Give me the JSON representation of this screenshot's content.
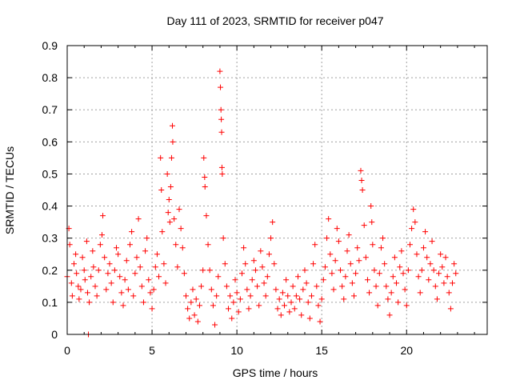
{
  "chart_data": {
    "type": "scatter",
    "title": "Day 111 of 2023, SRMTID for receiver p047",
    "xlabel": "GPS time / hours",
    "ylabel": "SRMTID / TECUs",
    "xlim": [
      0,
      24.75
    ],
    "ylim": [
      0,
      0.9
    ],
    "xticks": [
      0,
      5,
      10,
      15,
      20
    ],
    "yticks": [
      0,
      0.1,
      0.2,
      0.3,
      0.4,
      0.5,
      0.6,
      0.7,
      0.8,
      0.9
    ],
    "xtick_labels": [
      "0",
      "5",
      "10",
      "15",
      "20"
    ],
    "ytick_labels": [
      "0",
      "0.1",
      "0.2",
      "0.3",
      "0.4",
      "0.5",
      "0.6",
      "0.7",
      "0.8",
      "0.9"
    ],
    "grid": true,
    "marker": "+",
    "colors": {
      "points": "#ff0000",
      "grid": "#a0a0a0",
      "axis": "#000000"
    },
    "series": [
      {
        "name": "SRMTID",
        "points": [
          [
            0.0,
            0.18
          ],
          [
            0.1,
            0.33
          ],
          [
            0.15,
            0.28
          ],
          [
            0.25,
            0.16
          ],
          [
            0.3,
            0.12
          ],
          [
            0.4,
            0.22
          ],
          [
            0.5,
            0.25
          ],
          [
            0.55,
            0.19
          ],
          [
            0.65,
            0.15
          ],
          [
            0.7,
            0.11
          ],
          [
            0.8,
            0.14
          ],
          [
            0.9,
            0.24
          ],
          [
            1.0,
            0.2
          ],
          [
            1.05,
            0.17
          ],
          [
            1.15,
            0.29
          ],
          [
            1.2,
            0.13
          ],
          [
            1.25,
            0.0
          ],
          [
            1.3,
            0.1
          ],
          [
            1.4,
            0.18
          ],
          [
            1.5,
            0.26
          ],
          [
            1.55,
            0.21
          ],
          [
            1.65,
            0.15
          ],
          [
            1.75,
            0.12
          ],
          [
            1.85,
            0.2
          ],
          [
            1.95,
            0.28
          ],
          [
            2.05,
            0.31
          ],
          [
            2.1,
            0.37
          ],
          [
            2.2,
            0.24
          ],
          [
            2.3,
            0.14
          ],
          [
            2.4,
            0.19
          ],
          [
            2.5,
            0.22
          ],
          [
            2.6,
            0.16
          ],
          [
            2.7,
            0.1
          ],
          [
            2.8,
            0.2
          ],
          [
            2.9,
            0.27
          ],
          [
            3.0,
            0.25
          ],
          [
            3.1,
            0.18
          ],
          [
            3.2,
            0.13
          ],
          [
            3.3,
            0.09
          ],
          [
            3.4,
            0.17
          ],
          [
            3.5,
            0.23
          ],
          [
            3.6,
            0.14
          ],
          [
            3.7,
            0.28
          ],
          [
            3.8,
            0.32
          ],
          [
            3.9,
            0.12
          ],
          [
            4.0,
            0.19
          ],
          [
            4.1,
            0.24
          ],
          [
            4.2,
            0.36
          ],
          [
            4.3,
            0.21
          ],
          [
            4.4,
            0.15
          ],
          [
            4.5,
            0.1
          ],
          [
            4.6,
            0.26
          ],
          [
            4.7,
            0.3
          ],
          [
            4.8,
            0.17
          ],
          [
            4.9,
            0.13
          ],
          [
            5.0,
            0.08
          ],
          [
            5.1,
            0.14
          ],
          [
            5.2,
            0.21
          ],
          [
            5.3,
            0.25
          ],
          [
            5.4,
            0.18
          ],
          [
            5.5,
            0.55
          ],
          [
            5.55,
            0.45
          ],
          [
            5.6,
            0.32
          ],
          [
            5.7,
            0.22
          ],
          [
            5.8,
            0.16
          ],
          [
            5.9,
            0.5
          ],
          [
            5.95,
            0.38
          ],
          [
            6.0,
            0.42
          ],
          [
            6.05,
            0.35
          ],
          [
            6.1,
            0.46
          ],
          [
            6.15,
            0.55
          ],
          [
            6.2,
            0.65
          ],
          [
            6.22,
            0.6
          ],
          [
            6.3,
            0.36
          ],
          [
            6.4,
            0.28
          ],
          [
            6.5,
            0.21
          ],
          [
            6.6,
            0.39
          ],
          [
            6.7,
            0.33
          ],
          [
            6.8,
            0.27
          ],
          [
            6.9,
            0.19
          ],
          [
            7.0,
            0.12
          ],
          [
            7.1,
            0.08
          ],
          [
            7.2,
            0.05
          ],
          [
            7.3,
            0.1
          ],
          [
            7.4,
            0.14
          ],
          [
            7.5,
            0.06
          ],
          [
            7.6,
            0.11
          ],
          [
            7.7,
            0.04
          ],
          [
            7.8,
            0.09
          ],
          [
            7.9,
            0.15
          ],
          [
            8.0,
            0.2
          ],
          [
            8.05,
            0.55
          ],
          [
            8.1,
            0.49
          ],
          [
            8.12,
            0.46
          ],
          [
            8.2,
            0.37
          ],
          [
            8.3,
            0.28
          ],
          [
            8.4,
            0.2
          ],
          [
            8.5,
            0.14
          ],
          [
            8.6,
            0.09
          ],
          [
            8.7,
            0.03
          ],
          [
            8.8,
            0.12
          ],
          [
            8.9,
            0.18
          ],
          [
            9.0,
            0.82
          ],
          [
            9.03,
            0.77
          ],
          [
            9.06,
            0.7
          ],
          [
            9.08,
            0.67
          ],
          [
            9.1,
            0.63
          ],
          [
            9.12,
            0.52
          ],
          [
            9.14,
            0.5
          ],
          [
            9.2,
            0.3
          ],
          [
            9.3,
            0.22
          ],
          [
            9.4,
            0.15
          ],
          [
            9.5,
            0.08
          ],
          [
            9.6,
            0.12
          ],
          [
            9.7,
            0.05
          ],
          [
            9.8,
            0.1
          ],
          [
            9.9,
            0.17
          ],
          [
            10.0,
            0.13
          ],
          [
            10.1,
            0.07
          ],
          [
            10.2,
            0.11
          ],
          [
            10.3,
            0.19
          ],
          [
            10.4,
            0.27
          ],
          [
            10.5,
            0.22
          ],
          [
            10.6,
            0.14
          ],
          [
            10.7,
            0.08
          ],
          [
            10.8,
            0.12
          ],
          [
            10.9,
            0.17
          ],
          [
            11.0,
            0.23
          ],
          [
            11.1,
            0.2
          ],
          [
            11.2,
            0.15
          ],
          [
            11.3,
            0.09
          ],
          [
            11.4,
            0.26
          ],
          [
            11.5,
            0.21
          ],
          [
            11.6,
            0.16
          ],
          [
            11.7,
            0.12
          ],
          [
            11.8,
            0.18
          ],
          [
            11.9,
            0.25
          ],
          [
            12.0,
            0.3
          ],
          [
            12.1,
            0.35
          ],
          [
            12.2,
            0.22
          ],
          [
            12.3,
            0.14
          ],
          [
            12.4,
            0.08
          ],
          [
            12.5,
            0.11
          ],
          [
            12.6,
            0.06
          ],
          [
            12.7,
            0.13
          ],
          [
            12.8,
            0.09
          ],
          [
            12.9,
            0.17
          ],
          [
            13.0,
            0.12
          ],
          [
            13.1,
            0.07
          ],
          [
            13.2,
            0.1
          ],
          [
            13.3,
            0.15
          ],
          [
            13.4,
            0.08
          ],
          [
            13.5,
            0.12
          ],
          [
            13.6,
            0.18
          ],
          [
            13.7,
            0.11
          ],
          [
            13.8,
            0.06
          ],
          [
            13.9,
            0.14
          ],
          [
            14.0,
            0.2
          ],
          [
            14.1,
            0.16
          ],
          [
            14.2,
            0.1
          ],
          [
            14.3,
            0.05
          ],
          [
            14.4,
            0.12
          ],
          [
            14.5,
            0.22
          ],
          [
            14.6,
            0.28
          ],
          [
            14.7,
            0.15
          ],
          [
            14.8,
            0.09
          ],
          [
            14.9,
            0.04
          ],
          [
            15.0,
            0.11
          ],
          [
            15.1,
            0.17
          ],
          [
            15.2,
            0.21
          ],
          [
            15.3,
            0.3
          ],
          [
            15.4,
            0.36
          ],
          [
            15.5,
            0.25
          ],
          [
            15.6,
            0.19
          ],
          [
            15.7,
            0.14
          ],
          [
            15.8,
            0.23
          ],
          [
            15.9,
            0.33
          ],
          [
            16.0,
            0.29
          ],
          [
            16.1,
            0.2
          ],
          [
            16.2,
            0.15
          ],
          [
            16.3,
            0.11
          ],
          [
            16.4,
            0.18
          ],
          [
            16.5,
            0.26
          ],
          [
            16.6,
            0.31
          ],
          [
            16.7,
            0.22
          ],
          [
            16.8,
            0.16
          ],
          [
            16.9,
            0.12
          ],
          [
            17.0,
            0.19
          ],
          [
            17.1,
            0.27
          ],
          [
            17.2,
            0.23
          ],
          [
            17.3,
            0.51
          ],
          [
            17.35,
            0.48
          ],
          [
            17.4,
            0.45
          ],
          [
            17.5,
            0.34
          ],
          [
            17.6,
            0.24
          ],
          [
            17.7,
            0.17
          ],
          [
            17.8,
            0.13
          ],
          [
            17.9,
            0.4
          ],
          [
            17.95,
            0.35
          ],
          [
            18.0,
            0.28
          ],
          [
            18.1,
            0.2
          ],
          [
            18.2,
            0.15
          ],
          [
            18.3,
            0.09
          ],
          [
            18.4,
            0.19
          ],
          [
            18.5,
            0.27
          ],
          [
            18.6,
            0.3
          ],
          [
            18.7,
            0.22
          ],
          [
            18.8,
            0.15
          ],
          [
            18.9,
            0.11
          ],
          [
            19.0,
            0.06
          ],
          [
            19.1,
            0.13
          ],
          [
            19.2,
            0.18
          ],
          [
            19.3,
            0.24
          ],
          [
            19.4,
            0.16
          ],
          [
            19.5,
            0.1
          ],
          [
            19.6,
            0.21
          ],
          [
            19.7,
            0.26
          ],
          [
            19.8,
            0.19
          ],
          [
            19.9,
            0.14
          ],
          [
            20.0,
            0.09
          ],
          [
            20.1,
            0.2
          ],
          [
            20.2,
            0.28
          ],
          [
            20.3,
            0.33
          ],
          [
            20.4,
            0.39
          ],
          [
            20.5,
            0.35
          ],
          [
            20.6,
            0.25
          ],
          [
            20.7,
            0.18
          ],
          [
            20.8,
            0.13
          ],
          [
            20.9,
            0.2
          ],
          [
            21.0,
            0.27
          ],
          [
            21.1,
            0.32
          ],
          [
            21.2,
            0.24
          ],
          [
            21.3,
            0.17
          ],
          [
            21.4,
            0.22
          ],
          [
            21.5,
            0.29
          ],
          [
            21.6,
            0.2
          ],
          [
            21.7,
            0.15
          ],
          [
            21.8,
            0.11
          ],
          [
            21.9,
            0.19
          ],
          [
            22.0,
            0.25
          ],
          [
            22.1,
            0.21
          ],
          [
            22.2,
            0.16
          ],
          [
            22.3,
            0.24
          ],
          [
            22.4,
            0.18
          ],
          [
            22.5,
            0.13
          ],
          [
            22.6,
            0.08
          ],
          [
            22.7,
            0.16
          ],
          [
            22.8,
            0.22
          ],
          [
            22.9,
            0.19
          ]
        ]
      }
    ]
  }
}
